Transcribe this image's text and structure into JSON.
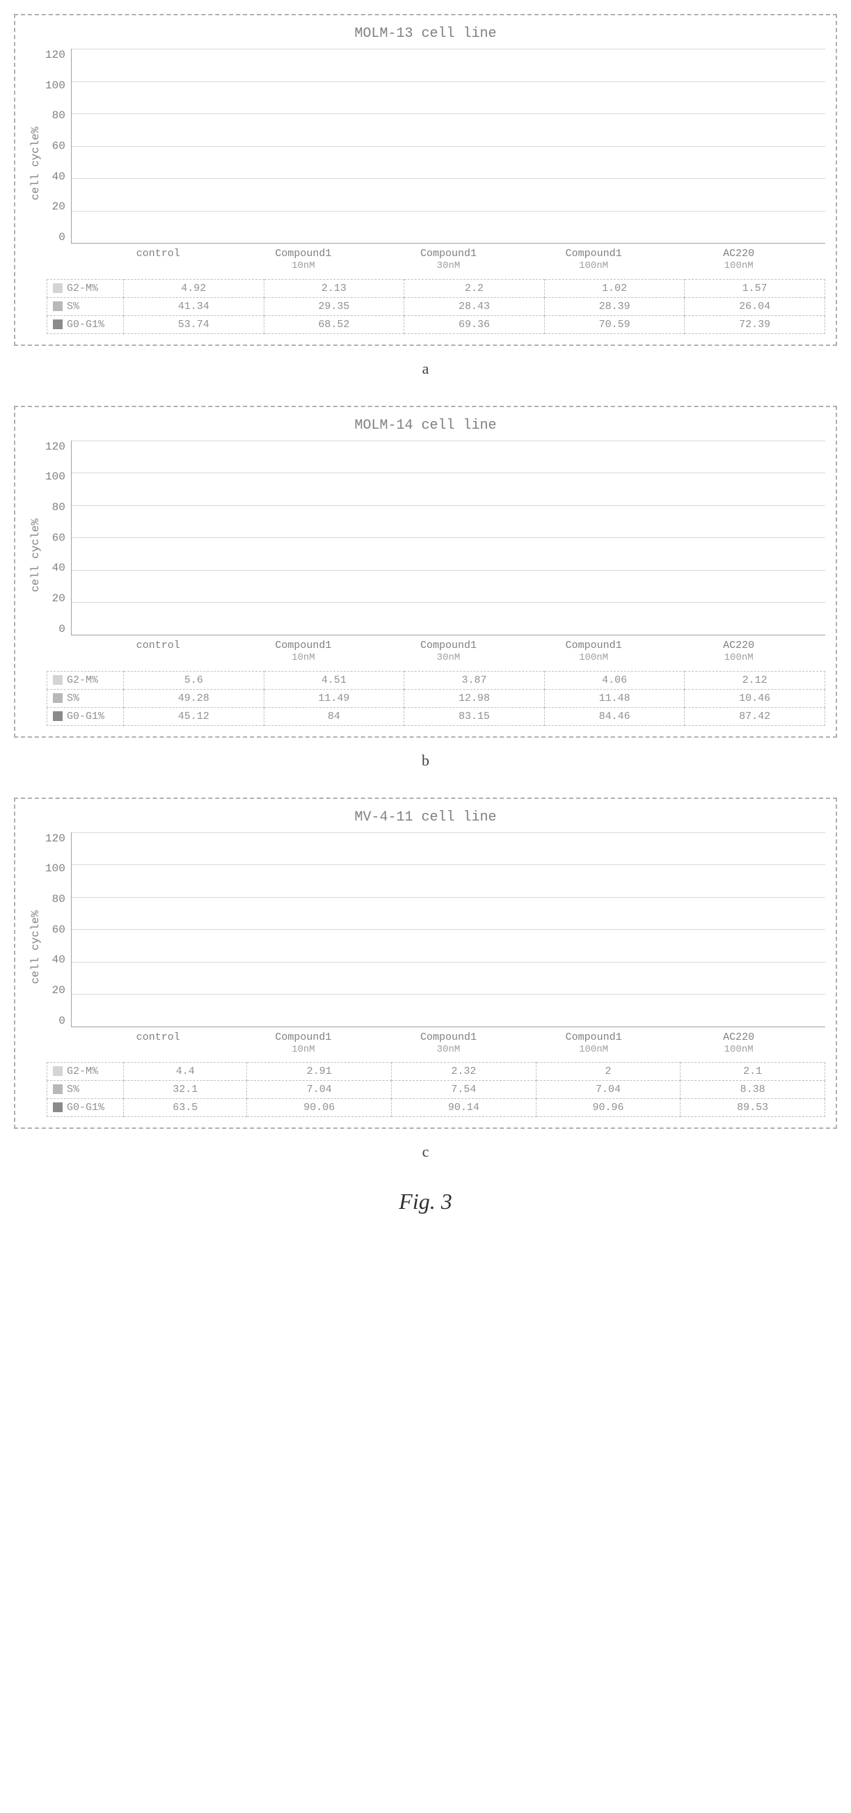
{
  "figure_label": "Fig. 3",
  "colors": {
    "g0g1": "#8a8a8a",
    "s": "#b8b8b8",
    "g2m": "#d4d4d4",
    "grid": "#d8d8d8",
    "axis": "#a0a0a0",
    "text": "#808080"
  },
  "ylim": [
    0,
    120
  ],
  "ytick_step": 20,
  "yticks": [
    120,
    100,
    80,
    60,
    40,
    20,
    0
  ],
  "ylabel": "cell cycle%",
  "categories": [
    {
      "top": "control",
      "sub": ""
    },
    {
      "top": "Compound1",
      "sub": "10nM"
    },
    {
      "top": "Compound1",
      "sub": "30nM"
    },
    {
      "top": "Compound1",
      "sub": "100nM"
    },
    {
      "top": "AC220",
      "sub": "100nM"
    }
  ],
  "row_headers": [
    "G2-M%",
    "S%",
    "G0-G1%"
  ],
  "panels": [
    {
      "id": "a",
      "title": "MOLM-13 cell line",
      "sub": "a",
      "g2m": [
        4.92,
        2.13,
        2.2,
        1.02,
        1.57
      ],
      "s": [
        41.34,
        29.35,
        28.43,
        28.39,
        26.04
      ],
      "g0g1": [
        53.74,
        68.52,
        69.36,
        70.59,
        72.39
      ]
    },
    {
      "id": "b",
      "title": "MOLM-14 cell line",
      "sub": "b",
      "g2m": [
        5.6,
        4.51,
        3.87,
        4.06,
        2.12
      ],
      "s": [
        49.28,
        11.49,
        12.98,
        11.48,
        10.46
      ],
      "g0g1": [
        45.12,
        84,
        83.15,
        84.46,
        87.42
      ]
    },
    {
      "id": "c",
      "title": "MV-4-11 cell line",
      "sub": "c",
      "g2m": [
        4.4,
        2.91,
        2.32,
        2,
        2.1
      ],
      "s": [
        32.1,
        7.04,
        7.54,
        7.04,
        8.38
      ],
      "g0g1": [
        63.5,
        90.06,
        90.14,
        90.96,
        89.53
      ]
    }
  ]
}
